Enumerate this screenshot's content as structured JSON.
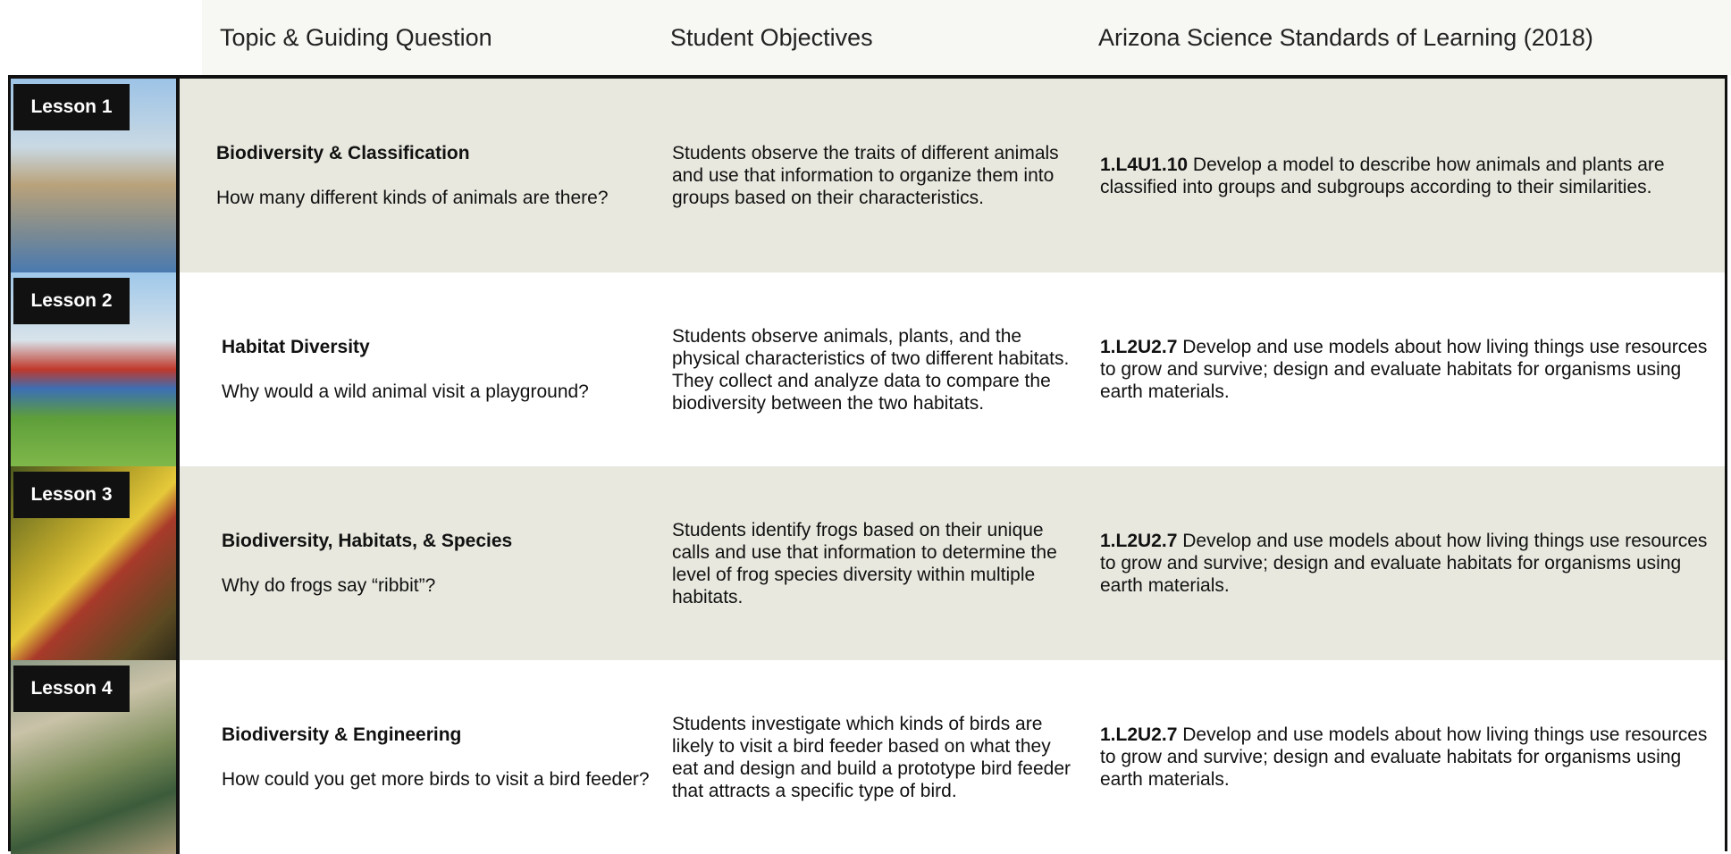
{
  "header": {
    "columns": [
      "Topic & Guiding Question",
      "Student Objectives",
      "Arizona Science Standards of Learning (2018)"
    ]
  },
  "lessons": [
    {
      "label": "Lesson 1",
      "topic": "Biodiversity & Classification",
      "question": "How many different kinds of animals are there?",
      "objectives": "Students observe the traits of different animals and use that information to organize them into groups based on their characteristics.",
      "standard_code": "1.L4U1.10",
      "standard_text": "Develop a model to describe how animals and plants are classified into groups and subgroups according to their similarities."
    },
    {
      "label": "Lesson 2",
      "topic": "Habitat Diversity",
      "question": "Why would a wild animal visit a playground?",
      "objectives": "Students observe animals, plants, and the physical characteristics of two different habitats. They collect and analyze data to compare the biodiversity between the two habitats.",
      "standard_code": "1.L2U2.7",
      "standard_text": "Develop and use models about how living things use resources to grow and survive; design and evaluate habitats for organisms using earth materials."
    },
    {
      "label": "Lesson 3",
      "topic": "Biodiversity, Habitats, & Species",
      "question": "Why do frogs say “ribbit”?",
      "objectives": "Students identify frogs based on their unique calls and use that information to determine the level of frog species diversity within multiple habitats.",
      "standard_code": "1.L2U2.7",
      "standard_text": "Develop and use models about how living things use resources to grow and survive; design and evaluate habitats for organisms using earth materials."
    },
    {
      "label": "Lesson 4",
      "topic": "Biodiversity & Engineering",
      "question": "How could you get more birds to visit a bird feeder?",
      "objectives": "Students investigate which kinds of birds are likely to visit a bird feeder based on what they eat and design and build a prototype bird feeder that attracts a specific type of bird.",
      "standard_code": "1.L2U2.7",
      "standard_text": "Develop and use models about how living things use resources to grow and survive; design and evaluate habitats for organisms using earth materials."
    }
  ]
}
